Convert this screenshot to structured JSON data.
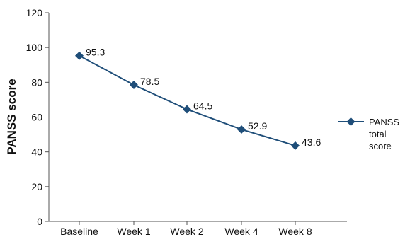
{
  "chart_data": {
    "type": "line",
    "categories": [
      "Baseline",
      "Week 1",
      "Week 2",
      "Week 4",
      "Week 8"
    ],
    "series": [
      {
        "name": "PANSS total score",
        "values": [
          95.3,
          78.5,
          64.5,
          52.9,
          43.6
        ],
        "data_labels": [
          "95.3",
          "78.5",
          "64.5",
          "52.9",
          "43.6"
        ],
        "color": "#1f4e79",
        "marker": "diamond"
      }
    ],
    "title": "",
    "xlabel": "",
    "ylabel": "PANSS score",
    "ylim": [
      0,
      120
    ],
    "yticks": [
      "0",
      "20",
      "40",
      "60",
      "80",
      "100",
      "120"
    ],
    "grid": false,
    "legend_position": "right",
    "legend_lines": [
      "PANSS",
      "total",
      "score"
    ]
  }
}
